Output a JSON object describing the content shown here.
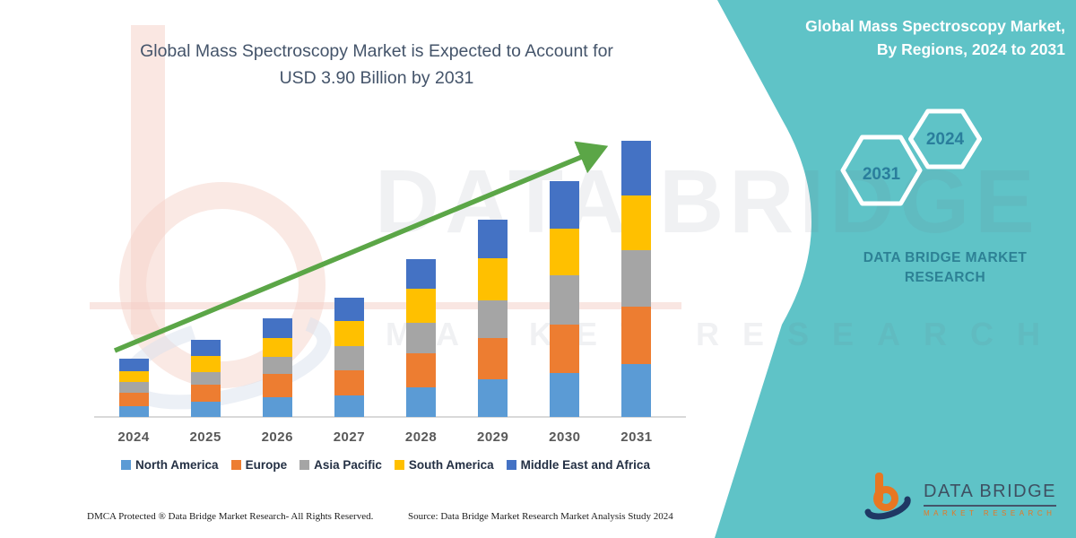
{
  "header": {
    "title_line1": "Global Mass Spectroscopy Market is Expected to Account for",
    "title_line2": "USD 3.90 Billion by 2031"
  },
  "panel": {
    "title_line1": "Global Mass Spectroscopy Market,",
    "title_line2": "By Regions, 2024 to 2031",
    "hexagons": [
      {
        "label": "2031"
      },
      {
        "label": "2024"
      }
    ],
    "brand_line1": "DATA BRIDGE MARKET",
    "brand_line2": "RESEARCH",
    "background_color": "#5FC3C7",
    "text_color": "#2D8195"
  },
  "watermark": {
    "brand": "DATA BRIDGE",
    "sub": "MARKET RESEARCH"
  },
  "logo": {
    "name": "DATA BRIDGE",
    "subtitle": "MARKET RESEARCH"
  },
  "footer": {
    "dmca": "DMCA Protected ® Data Bridge Market Research-  All Rights Reserved.",
    "source": "Source: Data Bridge Market Research  Market Analysis Study 2024"
  },
  "chart_data": {
    "type": "bar",
    "stacked": true,
    "title": "Global Mass Spectroscopy Market is Expected to Account for USD 3.90 Billion by 2031",
    "unit": "USD Billion",
    "categories": [
      "2024",
      "2025",
      "2026",
      "2027",
      "2028",
      "2029",
      "2030",
      "2031"
    ],
    "series": [
      {
        "name": "North America",
        "color": "#5B9BD5",
        "values": [
          0.15,
          0.21,
          0.28,
          0.3,
          0.42,
          0.53,
          0.62,
          0.75
        ]
      },
      {
        "name": "Europe",
        "color": "#ED7D31",
        "values": [
          0.19,
          0.25,
          0.33,
          0.36,
          0.48,
          0.58,
          0.68,
          0.81
        ]
      },
      {
        "name": "Asia Pacific",
        "color": "#A5A5A5",
        "values": [
          0.15,
          0.17,
          0.24,
          0.34,
          0.43,
          0.53,
          0.7,
          0.79
        ]
      },
      {
        "name": "South America",
        "color": "#FFC000",
        "values": [
          0.16,
          0.23,
          0.26,
          0.35,
          0.48,
          0.6,
          0.66,
          0.78
        ]
      },
      {
        "name": "Middle East and Africa",
        "color": "#4472C4",
        "values": [
          0.18,
          0.23,
          0.28,
          0.34,
          0.42,
          0.54,
          0.67,
          0.77
        ]
      }
    ],
    "totals": [
      0.83,
      1.09,
      1.39,
      1.69,
      2.23,
      2.78,
      3.33,
      3.9
    ],
    "stack_order": "bottom to top as listed",
    "ylim": [
      0,
      4
    ],
    "gridlines": false,
    "legend_position": "bottom",
    "annotation": "upward growth trend arrow",
    "arrow_color": "#5BA647"
  }
}
